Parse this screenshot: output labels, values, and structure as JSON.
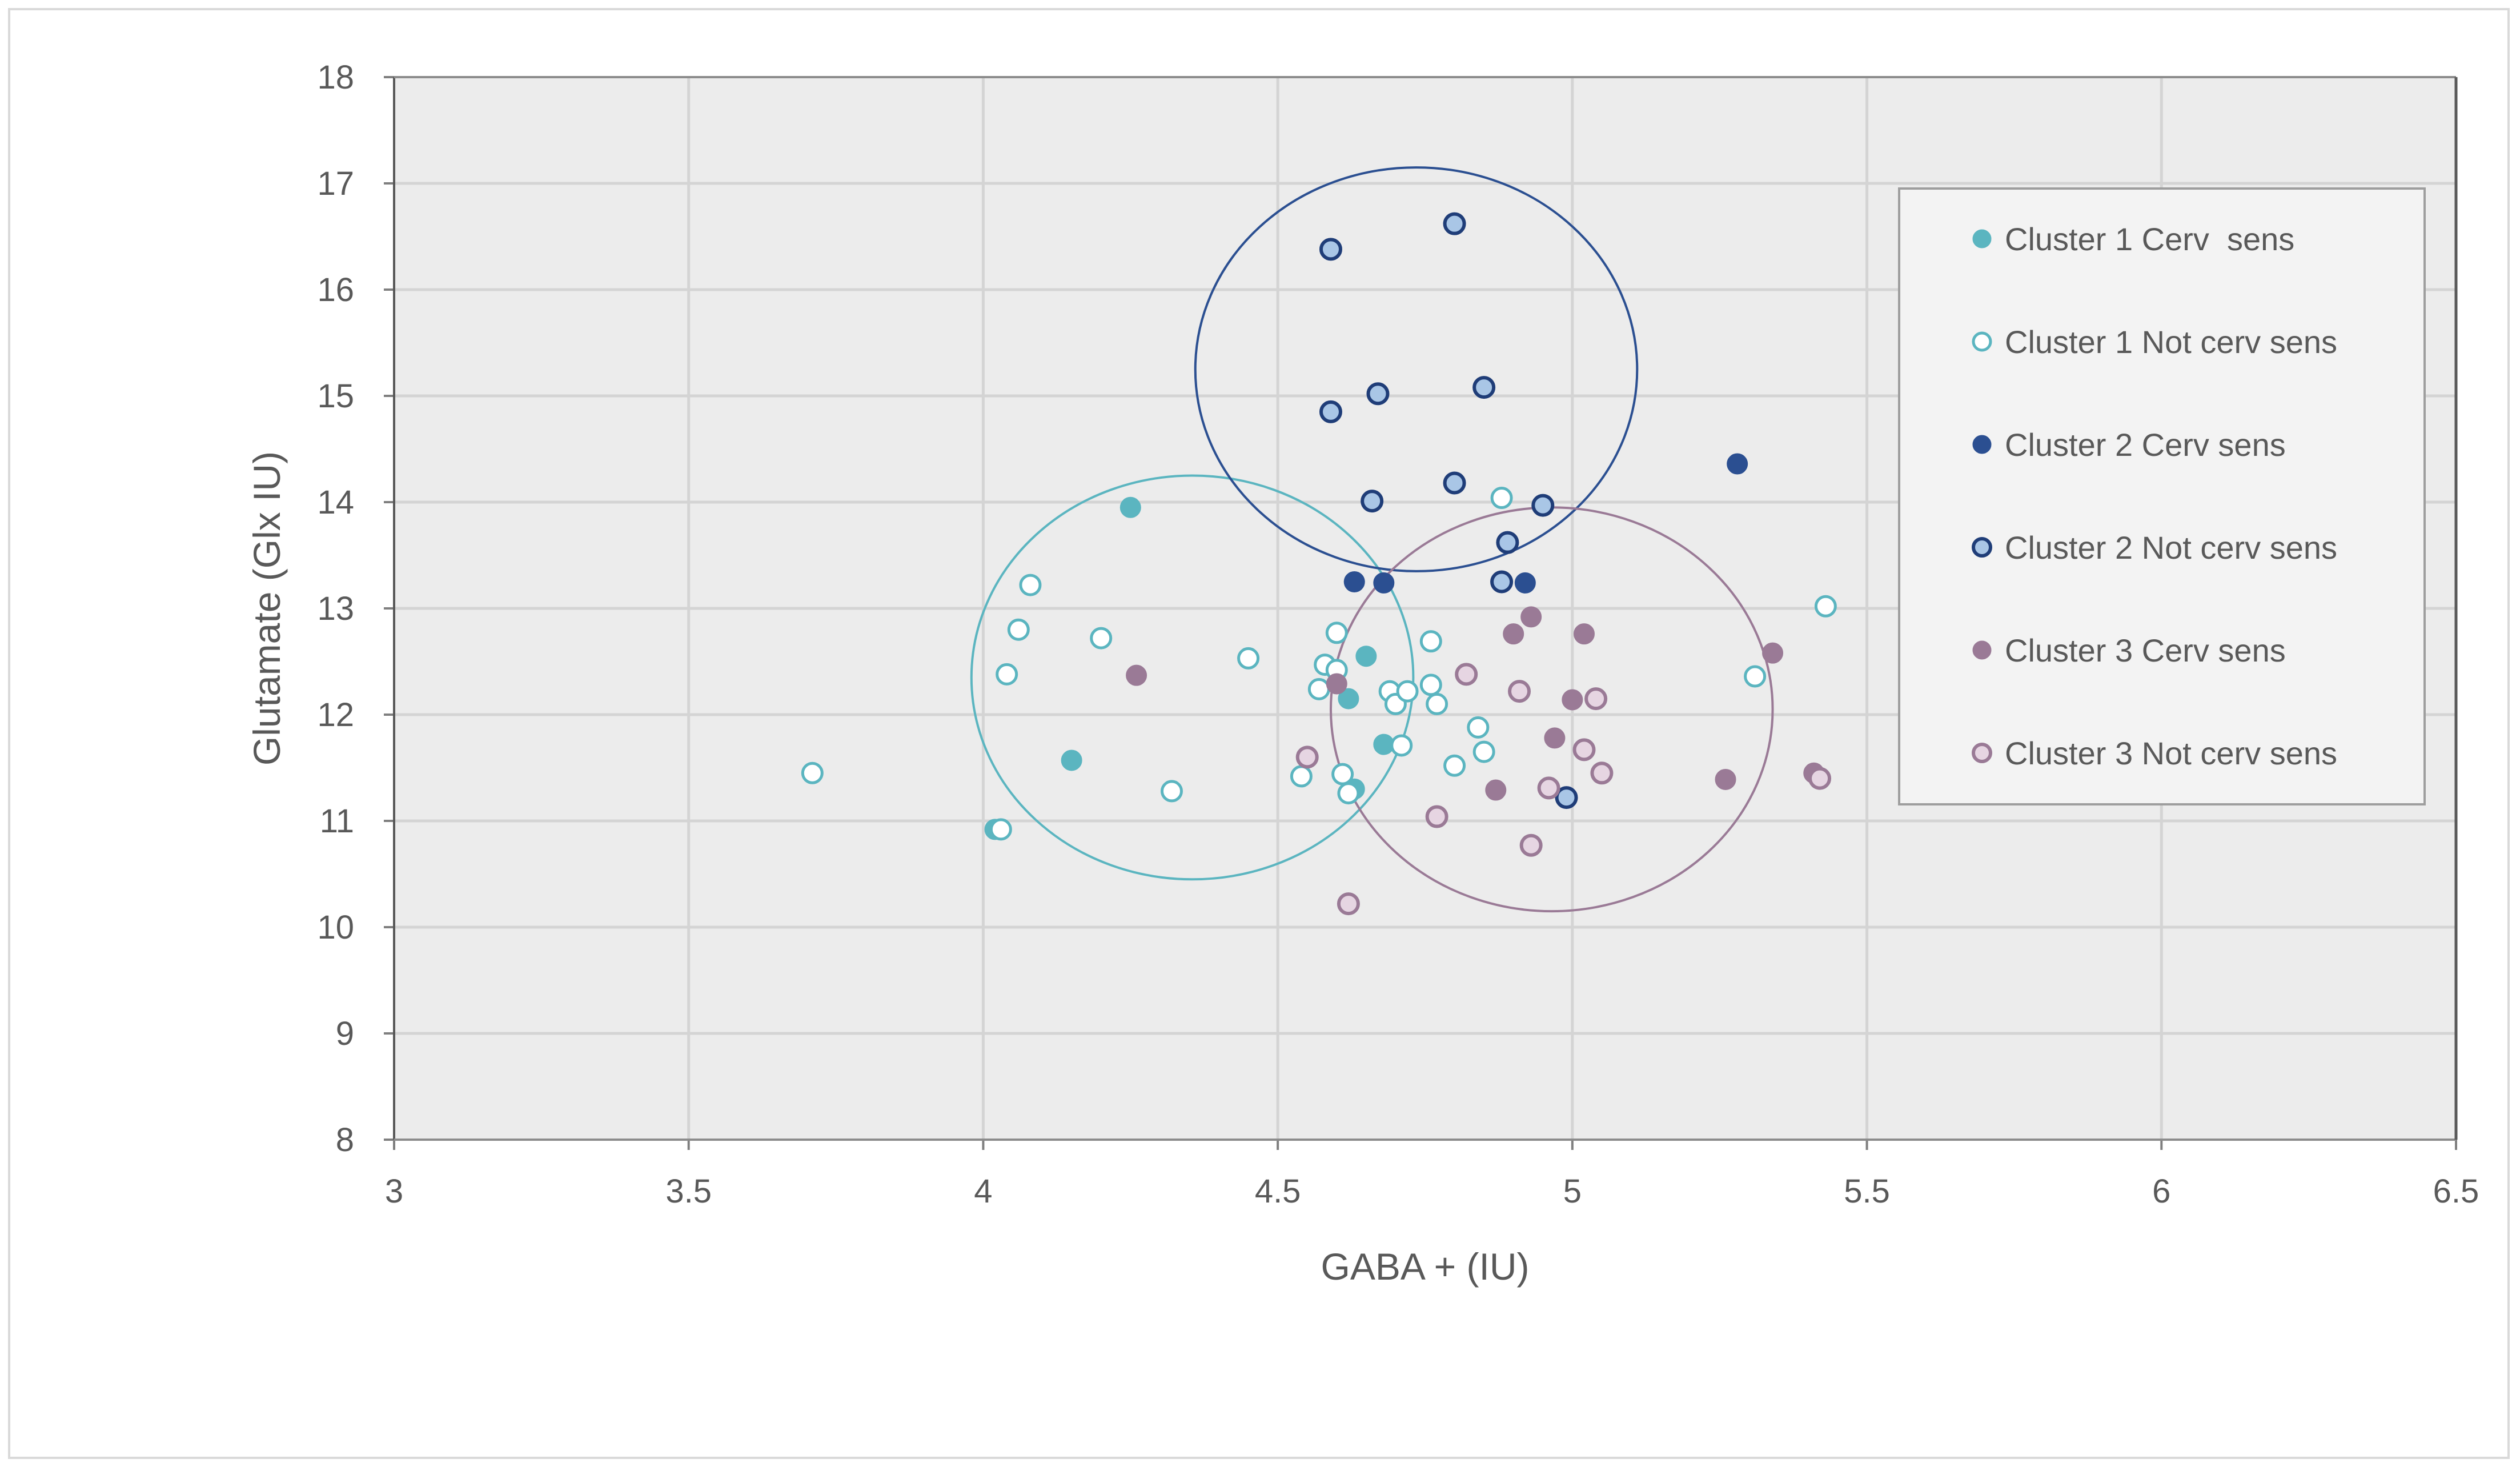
{
  "chart_data": {
    "type": "scatter",
    "title": "",
    "xlabel": "GABA + (IU)",
    "ylabel": "Glutamate (Glx IU)",
    "xlim": [
      3,
      6.5
    ],
    "ylim": [
      8,
      18
    ],
    "xticks": [
      3,
      3.5,
      4,
      4.5,
      5,
      5.5,
      6,
      6.5
    ],
    "yticks": [
      8,
      9,
      10,
      11,
      12,
      13,
      14,
      15,
      16,
      17,
      18
    ],
    "xtick_labels": [
      "3",
      "3.5",
      "4",
      "4.5",
      "5",
      "5.5",
      "6",
      "6.5"
    ],
    "ytick_labels": [
      "8",
      "9",
      "10",
      "11",
      "12",
      "13",
      "14",
      "15",
      "16",
      "17",
      "18"
    ],
    "grid": true,
    "legend_position": "top-right",
    "series": [
      {
        "name": "Cluster 1 Cerv  sens",
        "color": "#5bb5c0",
        "fill": "#5bb5c0",
        "marker": "filled",
        "points": [
          [
            4.25,
            13.95
          ],
          [
            4.15,
            11.57
          ],
          [
            4.65,
            12.55
          ],
          [
            4.62,
            12.15
          ],
          [
            4.68,
            11.72
          ],
          [
            4.63,
            11.3
          ],
          [
            4.02,
            10.92
          ]
        ]
      },
      {
        "name": "Cluster 1 Not cerv sens",
        "color": "#5bb5c0",
        "fill": "#ffffff",
        "marker": "open",
        "points": [
          [
            3.71,
            11.45
          ],
          [
            4.03,
            10.92
          ],
          [
            4.04,
            12.38
          ],
          [
            4.06,
            12.8
          ],
          [
            4.08,
            13.22
          ],
          [
            4.2,
            12.72
          ],
          [
            4.32,
            11.28
          ],
          [
            4.45,
            12.53
          ],
          [
            4.54,
            11.42
          ],
          [
            4.57,
            12.24
          ],
          [
            4.58,
            12.47
          ],
          [
            4.6,
            12.42
          ],
          [
            4.6,
            12.77
          ],
          [
            4.61,
            11.44
          ],
          [
            4.62,
            11.26
          ],
          [
            4.69,
            12.22
          ],
          [
            4.7,
            12.1
          ],
          [
            4.72,
            12.22
          ],
          [
            4.71,
            11.71
          ],
          [
            4.76,
            12.69
          ],
          [
            4.76,
            12.28
          ],
          [
            4.77,
            12.1
          ],
          [
            4.8,
            11.52
          ],
          [
            4.84,
            11.88
          ],
          [
            4.85,
            11.65
          ],
          [
            4.88,
            14.04
          ],
          [
            5.31,
            12.36
          ],
          [
            5.43,
            13.02
          ]
        ]
      },
      {
        "name": "Cluster 2 Cerv sens",
        "color": "#2b4f91",
        "fill": "#2b4f91",
        "marker": "filled",
        "points": [
          [
            4.63,
            13.25
          ],
          [
            4.68,
            13.24
          ],
          [
            4.92,
            13.24
          ],
          [
            5.28,
            14.36
          ]
        ]
      },
      {
        "name": "Cluster 2 Not cerv sens",
        "color": "#1f3d78",
        "fill": "#a9c6e6",
        "marker": "ringed",
        "points": [
          [
            4.59,
            16.38
          ],
          [
            4.8,
            16.62
          ],
          [
            4.59,
            14.85
          ],
          [
            4.67,
            15.02
          ],
          [
            4.85,
            15.08
          ],
          [
            4.66,
            14.01
          ],
          [
            4.8,
            14.18
          ],
          [
            4.95,
            13.97
          ],
          [
            4.89,
            13.62
          ],
          [
            4.88,
            13.25
          ],
          [
            4.99,
            11.22
          ]
        ]
      },
      {
        "name": "Cluster 3 Cerv sens",
        "color": "#9a7a96",
        "fill": "#9a7a96",
        "marker": "filled",
        "points": [
          [
            4.26,
            12.37
          ],
          [
            4.6,
            12.29
          ],
          [
            4.9,
            12.76
          ],
          [
            4.93,
            12.92
          ],
          [
            5.02,
            12.76
          ],
          [
            5.0,
            12.14
          ],
          [
            4.97,
            11.78
          ],
          [
            4.87,
            11.29
          ],
          [
            5.26,
            11.39
          ],
          [
            5.34,
            12.58
          ],
          [
            5.41,
            11.45
          ]
        ]
      },
      {
        "name": "Cluster 3 Not cerv sens",
        "color": "#9a7a96",
        "fill": "#e6d5e2",
        "marker": "ringed",
        "points": [
          [
            4.55,
            11.6
          ],
          [
            4.62,
            10.22
          ],
          [
            4.77,
            11.04
          ],
          [
            4.82,
            12.38
          ],
          [
            4.91,
            12.22
          ],
          [
            4.93,
            10.77
          ],
          [
            4.96,
            11.31
          ],
          [
            5.02,
            11.67
          ],
          [
            5.04,
            12.15
          ],
          [
            5.05,
            11.45
          ],
          [
            5.42,
            11.4
          ]
        ]
      }
    ],
    "ellipses": [
      {
        "name": "Cluster 1 ellipse",
        "color": "#5bb5c0",
        "cx": 4.355,
        "cy": 12.35,
        "rx": 0.375,
        "ry": 1.9
      },
      {
        "name": "Cluster 2 ellipse",
        "color": "#2b4f91",
        "cx": 4.735,
        "cy": 15.25,
        "rx": 0.375,
        "ry": 1.9
      },
      {
        "name": "Cluster 3 ellipse",
        "color": "#9a7a96",
        "cx": 4.965,
        "cy": 12.05,
        "rx": 0.375,
        "ry": 1.9
      }
    ]
  }
}
